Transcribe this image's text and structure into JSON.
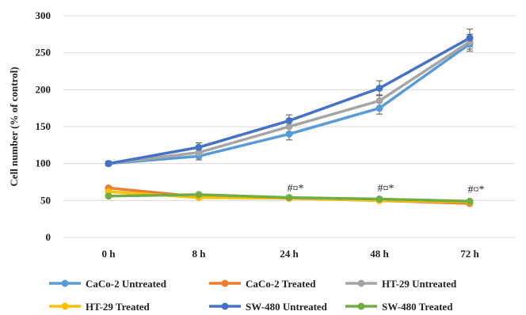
{
  "chart_data": {
    "type": "line",
    "title": "",
    "xlabel": "",
    "ylabel": "Cell number (% of control)",
    "categories": [
      "0 h",
      "8 h",
      "24 h",
      "48 h",
      "72 h"
    ],
    "ylim": [
      0,
      300
    ],
    "yticks": [
      0,
      50,
      100,
      150,
      200,
      250,
      300
    ],
    "grid": "horizontal",
    "legend_position": "bottom",
    "series": [
      {
        "name": "CaCo-2 Untreated",
        "color": "#5B9BD5",
        "values": [
          100,
          110,
          140,
          175,
          262
        ],
        "errors": [
          3,
          5,
          8,
          8,
          10
        ]
      },
      {
        "name": "CaCo-2 Treated",
        "color": "#ED7D31",
        "values": [
          67,
          55,
          53,
          50,
          46
        ],
        "errors": [
          2,
          2,
          2,
          2,
          2
        ]
      },
      {
        "name": "HT-29 Untreated",
        "color": "#A5A5A5",
        "values": [
          100,
          115,
          150,
          185,
          265
        ],
        "errors": [
          3,
          5,
          8,
          8,
          10
        ]
      },
      {
        "name": "HT-29 Treated",
        "color": "#FFC000",
        "values": [
          62,
          54,
          53,
          50,
          48
        ],
        "errors": [
          2,
          2,
          2,
          2,
          2
        ]
      },
      {
        "name": "SW-480 Untreated",
        "color": "#4472C4",
        "values": [
          100,
          122,
          158,
          202,
          270
        ],
        "errors": [
          3,
          6,
          8,
          10,
          12
        ]
      },
      {
        "name": "SW-480 Treated",
        "color": "#70AD47",
        "values": [
          56,
          58,
          54,
          52,
          49
        ],
        "errors": [
          2,
          2,
          2,
          2,
          2
        ]
      }
    ],
    "annotations": [
      {
        "category": "24 h",
        "y": 58,
        "text": "#¤*"
      },
      {
        "category": "48 h",
        "y": 58,
        "text": "#¤*"
      },
      {
        "category": "72 h",
        "y": 56,
        "text": "#¤*"
      }
    ]
  }
}
